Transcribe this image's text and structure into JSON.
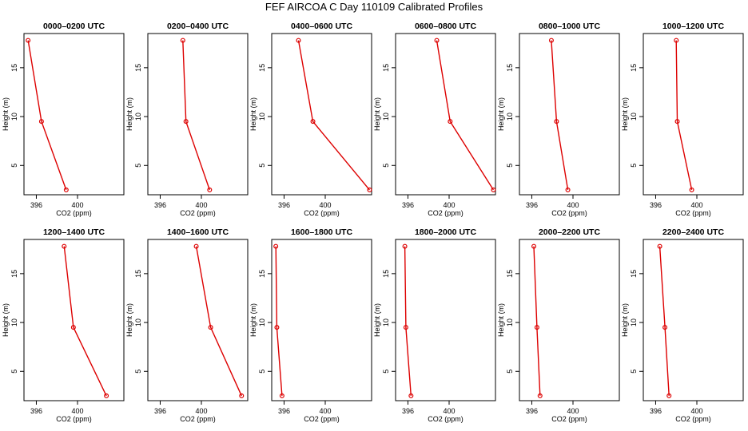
{
  "figure": {
    "title": "FEF AIRCOA C  Day 110109  Calibrated Profiles"
  },
  "colors": {
    "series": "#dd0000",
    "axis": "#000000"
  },
  "chart_data": [
    {
      "type": "line",
      "title": "0000–0200 UTC",
      "xlabel": "CO2 (ppm)",
      "ylabel": "Height (m)",
      "xlim": [
        394.8,
        404.5
      ],
      "ylim": [
        2,
        18.5
      ],
      "xticks": [
        "396",
        "400"
      ],
      "xtick_values": [
        396,
        400
      ],
      "yticks": [
        "5",
        "10",
        "15"
      ],
      "ytick_values": [
        5,
        10,
        15
      ],
      "x": [
        395.2,
        396.5,
        398.9
      ],
      "y": [
        17.8,
        9.5,
        2.5
      ]
    },
    {
      "type": "line",
      "title": "0200–0400 UTC",
      "xlabel": "CO2 (ppm)",
      "ylabel": "Height (m)",
      "xlim": [
        394.8,
        404.5
      ],
      "ylim": [
        2,
        18.5
      ],
      "xticks": [
        "396",
        "400"
      ],
      "xtick_values": [
        396,
        400
      ],
      "yticks": [
        "5",
        "10",
        "15"
      ],
      "ytick_values": [
        5,
        10,
        15
      ],
      "x": [
        398.2,
        398.5,
        400.8
      ],
      "y": [
        17.8,
        9.5,
        2.5
      ]
    },
    {
      "type": "line",
      "title": "0400–0600 UTC",
      "xlabel": "CO2 (ppm)",
      "ylabel": "Height (m)",
      "xlim": [
        394.8,
        404.5
      ],
      "ylim": [
        2,
        18.5
      ],
      "xticks": [
        "396",
        "400"
      ],
      "xtick_values": [
        396,
        400
      ],
      "yticks": [
        "5",
        "10",
        "15"
      ],
      "ytick_values": [
        5,
        10,
        15
      ],
      "x": [
        397.4,
        398.8,
        404.3
      ],
      "y": [
        17.8,
        9.5,
        2.5
      ]
    },
    {
      "type": "line",
      "title": "0600–0800 UTC",
      "xlabel": "CO2 (ppm)",
      "ylabel": "Height (m)",
      "xlim": [
        394.8,
        404.5
      ],
      "ylim": [
        2,
        18.5
      ],
      "xticks": [
        "396",
        "400"
      ],
      "xtick_values": [
        396,
        400
      ],
      "yticks": [
        "5",
        "10",
        "15"
      ],
      "ytick_values": [
        5,
        10,
        15
      ],
      "x": [
        398.8,
        400.1,
        404.3
      ],
      "y": [
        17.8,
        9.5,
        2.5
      ]
    },
    {
      "type": "line",
      "title": "0800–1000 UTC",
      "xlabel": "CO2 (ppm)",
      "ylabel": "Height (m)",
      "xlim": [
        394.8,
        404.5
      ],
      "ylim": [
        2,
        18.5
      ],
      "xticks": [
        "396",
        "400"
      ],
      "xtick_values": [
        396,
        400
      ],
      "yticks": [
        "5",
        "10",
        "15"
      ],
      "ytick_values": [
        5,
        10,
        15
      ],
      "x": [
        397.9,
        398.4,
        399.5
      ],
      "y": [
        17.8,
        9.5,
        2.5
      ]
    },
    {
      "type": "line",
      "title": "1000–1200 UTC",
      "xlabel": "CO2 (ppm)",
      "ylabel": "Height (m)",
      "xlim": [
        394.8,
        404.5
      ],
      "ylim": [
        2,
        18.5
      ],
      "xticks": [
        "396",
        "400"
      ],
      "xtick_values": [
        396,
        400
      ],
      "yticks": [
        "5",
        "10",
        "15"
      ],
      "ytick_values": [
        5,
        10,
        15
      ],
      "x": [
        398.0,
        398.1,
        399.5
      ],
      "y": [
        17.8,
        9.5,
        2.5
      ]
    },
    {
      "type": "line",
      "title": "1200–1400 UTC",
      "xlabel": "CO2 (ppm)",
      "ylabel": "Height (m)",
      "xlim": [
        394.8,
        404.5
      ],
      "ylim": [
        2,
        18.5
      ],
      "xticks": [
        "396",
        "400"
      ],
      "xtick_values": [
        396,
        400
      ],
      "yticks": [
        "5",
        "10",
        "15"
      ],
      "ytick_values": [
        5,
        10,
        15
      ],
      "x": [
        398.7,
        399.6,
        402.8
      ],
      "y": [
        17.8,
        9.5,
        2.5
      ]
    },
    {
      "type": "line",
      "title": "1400–1600 UTC",
      "xlabel": "CO2 (ppm)",
      "ylabel": "Height (m)",
      "xlim": [
        394.8,
        404.5
      ],
      "ylim": [
        2,
        18.5
      ],
      "xticks": [
        "396",
        "400"
      ],
      "xtick_values": [
        396,
        400
      ],
      "yticks": [
        "5",
        "10",
        "15"
      ],
      "ytick_values": [
        5,
        10,
        15
      ],
      "x": [
        399.5,
        400.9,
        403.9
      ],
      "y": [
        17.8,
        9.5,
        2.5
      ]
    },
    {
      "type": "line",
      "title": "1600–1800 UTC",
      "xlabel": "CO2 (ppm)",
      "ylabel": "Height (m)",
      "xlim": [
        394.8,
        404.5
      ],
      "ylim": [
        2,
        18.5
      ],
      "xticks": [
        "396",
        "400"
      ],
      "xtick_values": [
        396,
        400
      ],
      "yticks": [
        "5",
        "10",
        "15"
      ],
      "ytick_values": [
        5,
        10,
        15
      ],
      "x": [
        395.2,
        395.3,
        395.8
      ],
      "y": [
        17.8,
        9.5,
        2.5
      ]
    },
    {
      "type": "line",
      "title": "1800–2000 UTC",
      "xlabel": "CO2 (ppm)",
      "ylabel": "Height (m)",
      "xlim": [
        394.8,
        404.5
      ],
      "ylim": [
        2,
        18.5
      ],
      "xticks": [
        "396",
        "400"
      ],
      "xtick_values": [
        396,
        400
      ],
      "yticks": [
        "5",
        "10",
        "15"
      ],
      "ytick_values": [
        5,
        10,
        15
      ],
      "x": [
        395.7,
        395.8,
        396.3
      ],
      "y": [
        17.8,
        9.5,
        2.5
      ]
    },
    {
      "type": "line",
      "title": "2000–2200 UTC",
      "xlabel": "CO2 (ppm)",
      "ylabel": "Height (m)",
      "xlim": [
        394.8,
        404.5
      ],
      "ylim": [
        2,
        18.5
      ],
      "xticks": [
        "396",
        "400"
      ],
      "xtick_values": [
        396,
        400
      ],
      "yticks": [
        "5",
        "10",
        "15"
      ],
      "ytick_values": [
        5,
        10,
        15
      ],
      "x": [
        396.2,
        396.5,
        396.8
      ],
      "y": [
        17.8,
        9.5,
        2.5
      ]
    },
    {
      "type": "line",
      "title": "2200–2400 UTC",
      "xlabel": "CO2 (ppm)",
      "ylabel": "Height (m)",
      "xlim": [
        394.8,
        404.5
      ],
      "ylim": [
        2,
        18.5
      ],
      "xticks": [
        "396",
        "400"
      ],
      "xtick_values": [
        396,
        400
      ],
      "yticks": [
        "5",
        "10",
        "15"
      ],
      "ytick_values": [
        5,
        10,
        15
      ],
      "x": [
        396.4,
        396.9,
        397.3
      ],
      "y": [
        17.8,
        9.5,
        2.5
      ]
    }
  ]
}
